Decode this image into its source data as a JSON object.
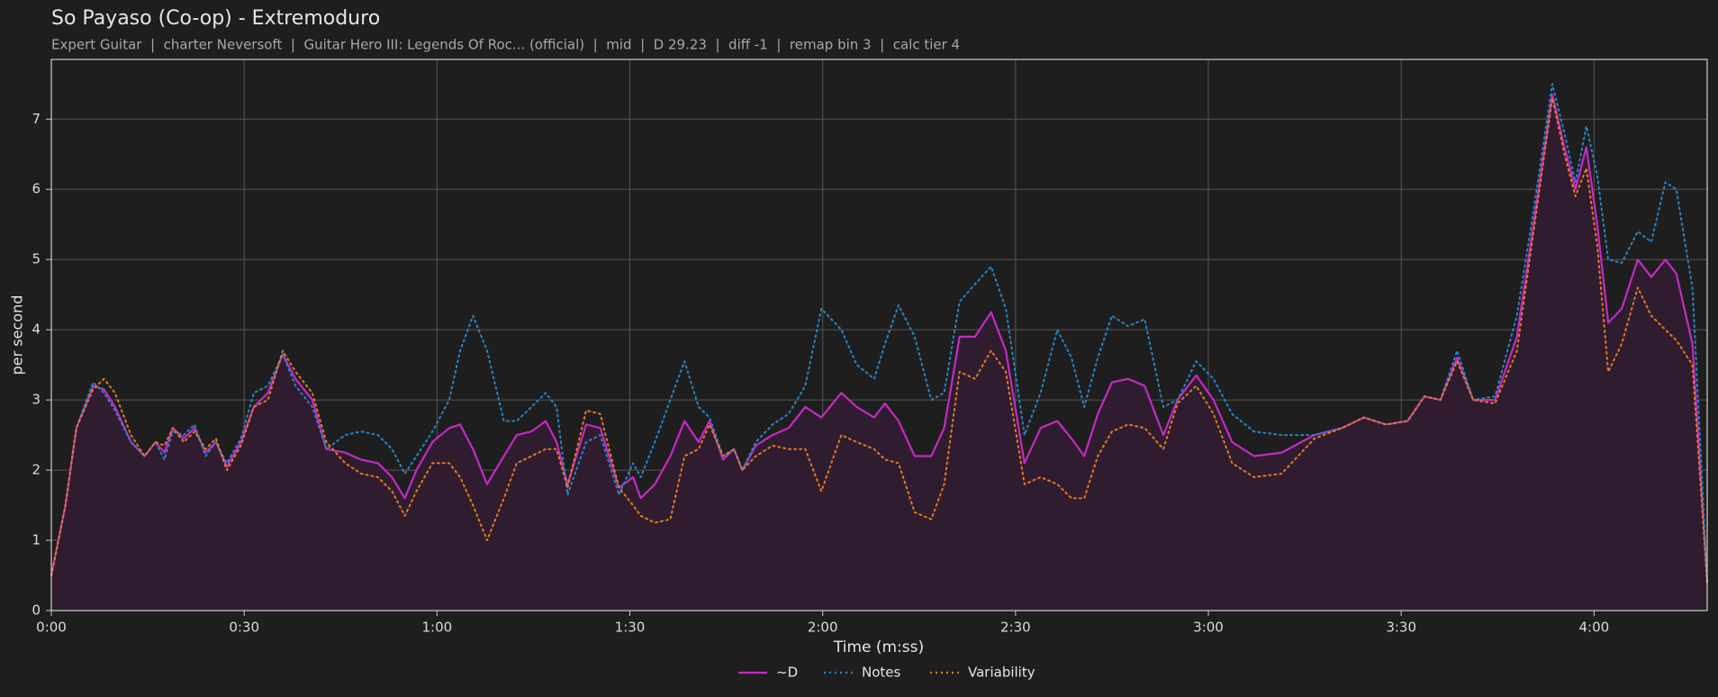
{
  "chart_data": {
    "type": "line",
    "title": "So Payaso (Co-op) - Extremoduro",
    "subtitle": "Expert Guitar  |  charter Neversoft  |  Guitar Hero III: Legends Of Roc... (official)  |  mid  |  D 29.23  |  diff -1  |  remap bin 3  |  calc tier 4",
    "xlabel": "Time (m:ss)",
    "ylabel": "per second",
    "xlim": [
      0,
      257.6
    ],
    "ylim": [
      0,
      7.85
    ],
    "xticks": [
      {
        "value": 0,
        "label": "0:00"
      },
      {
        "value": 30,
        "label": "0:30"
      },
      {
        "value": 60,
        "label": "1:00"
      },
      {
        "value": 90,
        "label": "1:30"
      },
      {
        "value": 120,
        "label": "2:00"
      },
      {
        "value": 150,
        "label": "2:30"
      },
      {
        "value": 180,
        "label": "3:00"
      },
      {
        "value": 210,
        "label": "3:30"
      },
      {
        "value": 240,
        "label": "4:00"
      }
    ],
    "yticks": [
      0,
      1,
      2,
      3,
      4,
      5,
      6,
      7
    ],
    "grid": true,
    "legend": "bottom",
    "x": [
      0,
      2.2,
      3.9,
      6.5,
      8.2,
      9.9,
      12.4,
      14.5,
      16.2,
      17.6,
      18.9,
      20.6,
      22.3,
      24,
      25.6,
      27.3,
      29.5,
      31.5,
      33.7,
      36,
      38,
      40.6,
      42.8,
      45.7,
      48.2,
      50.8,
      53,
      55,
      56.8,
      59.3,
      61.9,
      63.6,
      65.6,
      67.8,
      70.4,
      72.4,
      74.7,
      76.9,
      78.6,
      80.3,
      83.2,
      85.4,
      88.3,
      90.5,
      91.7,
      93.9,
      96.3,
      98.5,
      100.7,
      102.4,
      104.5,
      106.2,
      107.5,
      109.6,
      112.2,
      114.7,
      117.3,
      119.8,
      122.9,
      125.3,
      128,
      129.7,
      131.8,
      134.3,
      136.9,
      138.9,
      141.3,
      143.7,
      146.2,
      148.5,
      151.4,
      153.9,
      156.5,
      158.7,
      160.7,
      162.8,
      165,
      167.5,
      170.1,
      173,
      175.2,
      178.1,
      180.8,
      183.7,
      187.1,
      191.4,
      196.5,
      200.8,
      204.2,
      207.6,
      211,
      213.6,
      216.1,
      218.7,
      221.2,
      224.6,
      228,
      230.6,
      233.5,
      235.4,
      237.1,
      238.8,
      240.5,
      242.2,
      244.3,
      246.8,
      248.9,
      251.1,
      252.8,
      255.3,
      257.6
    ],
    "series": [
      {
        "name": "~D",
        "color": "#c42ac4",
        "style": "solid",
        "fill": "#2f1c2f",
        "values": [
          0.5,
          1.5,
          2.6,
          3.2,
          3.15,
          2.9,
          2.4,
          2.2,
          2.4,
          2.25,
          2.6,
          2.45,
          2.6,
          2.25,
          2.4,
          2.05,
          2.4,
          2.9,
          3.1,
          3.65,
          3.3,
          3.0,
          2.3,
          2.25,
          2.15,
          2.1,
          1.9,
          1.6,
          2.0,
          2.4,
          2.6,
          2.65,
          2.3,
          1.8,
          2.2,
          2.5,
          2.55,
          2.7,
          2.4,
          1.8,
          2.65,
          2.6,
          1.75,
          1.9,
          1.6,
          1.8,
          2.2,
          2.7,
          2.4,
          2.7,
          2.15,
          2.3,
          2.0,
          2.35,
          2.5,
          2.6,
          2.9,
          2.75,
          3.1,
          2.9,
          2.75,
          2.95,
          2.7,
          2.2,
          2.2,
          2.6,
          3.9,
          3.9,
          4.25,
          3.7,
          2.1,
          2.6,
          2.7,
          2.45,
          2.2,
          2.8,
          3.25,
          3.3,
          3.2,
          2.5,
          3.0,
          3.35,
          3.0,
          2.4,
          2.2,
          2.25,
          2.5,
          2.6,
          2.75,
          2.65,
          2.7,
          3.05,
          3.0,
          3.6,
          3.0,
          3.0,
          3.9,
          5.5,
          7.35,
          6.6,
          6.0,
          6.6,
          5.5,
          4.1,
          4.3,
          5.0,
          4.75,
          5.0,
          4.8,
          3.8,
          0.4
        ]
      },
      {
        "name": "Notes",
        "color": "#2a84c4",
        "style": "dotted",
        "values": [
          0.5,
          1.5,
          2.6,
          3.25,
          3.1,
          2.85,
          2.4,
          2.2,
          2.4,
          2.15,
          2.55,
          2.5,
          2.65,
          2.2,
          2.4,
          2.1,
          2.45,
          3.1,
          3.2,
          3.65,
          3.2,
          2.9,
          2.3,
          2.5,
          2.55,
          2.5,
          2.3,
          1.95,
          2.2,
          2.55,
          3.0,
          3.7,
          4.2,
          3.7,
          2.7,
          2.7,
          2.9,
          3.1,
          2.9,
          1.65,
          2.4,
          2.5,
          1.65,
          2.1,
          1.9,
          2.4,
          3.0,
          3.55,
          2.9,
          2.75,
          2.2,
          2.3,
          2.0,
          2.4,
          2.65,
          2.8,
          3.2,
          4.3,
          4.0,
          3.5,
          3.3,
          3.8,
          4.35,
          3.9,
          3.0,
          3.1,
          4.4,
          4.65,
          4.9,
          4.3,
          2.5,
          3.1,
          4.0,
          3.6,
          2.9,
          3.6,
          4.2,
          4.05,
          4.15,
          2.9,
          3.0,
          3.55,
          3.3,
          2.8,
          2.55,
          2.5,
          2.5,
          2.6,
          2.75,
          2.65,
          2.7,
          3.05,
          3.0,
          3.7,
          3.0,
          3.05,
          4.2,
          5.7,
          7.5,
          6.8,
          6.1,
          6.9,
          6.2,
          5.0,
          4.95,
          5.4,
          5.25,
          6.1,
          6.0,
          4.6,
          0.4
        ]
      },
      {
        "name": "Variability",
        "color": "#e07b22",
        "style": "dotted",
        "values": [
          0.5,
          1.5,
          2.6,
          3.15,
          3.3,
          3.1,
          2.5,
          2.2,
          2.4,
          2.35,
          2.6,
          2.4,
          2.55,
          2.3,
          2.45,
          2.0,
          2.35,
          2.9,
          3.0,
          3.7,
          3.4,
          3.1,
          2.4,
          2.1,
          1.95,
          1.9,
          1.7,
          1.35,
          1.7,
          2.1,
          2.1,
          1.9,
          1.5,
          1.0,
          1.6,
          2.1,
          2.2,
          2.3,
          2.3,
          1.75,
          2.85,
          2.8,
          1.75,
          1.5,
          1.35,
          1.25,
          1.3,
          2.2,
          2.3,
          2.65,
          2.2,
          2.3,
          2.0,
          2.2,
          2.35,
          2.3,
          2.3,
          1.7,
          2.5,
          2.4,
          2.3,
          2.15,
          2.1,
          1.4,
          1.3,
          1.8,
          3.4,
          3.3,
          3.7,
          3.4,
          1.8,
          1.9,
          1.8,
          1.6,
          1.6,
          2.2,
          2.55,
          2.65,
          2.6,
          2.3,
          2.95,
          3.2,
          2.8,
          2.1,
          1.9,
          1.95,
          2.45,
          2.6,
          2.75,
          2.65,
          2.7,
          3.05,
          3.0,
          3.55,
          3.0,
          2.95,
          3.7,
          5.4,
          7.3,
          6.5,
          5.9,
          6.3,
          5.2,
          3.4,
          3.8,
          4.6,
          4.2,
          4.0,
          3.85,
          3.5,
          0.4
        ]
      }
    ]
  }
}
